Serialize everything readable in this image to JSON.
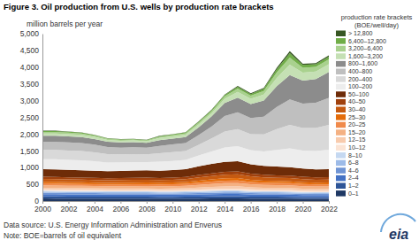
{
  "chart_data": {
    "type": "area",
    "stacked": true,
    "title": "Figure 3. Oil production from U.S. wells by production rate brackets",
    "y_label": "million barrels per year",
    "legend_title": [
      "production rate brackets",
      "(BOE/well/day)"
    ],
    "source": "Data source: U.S. Energy Information Administration and Enverus",
    "note": "Note: BOE=barrels of oil equivalent",
    "logo": "eia",
    "legend": "right",
    "grid": false,
    "x": [
      2000,
      2001,
      2002,
      2003,
      2004,
      2005,
      2006,
      2007,
      2008,
      2009,
      2010,
      2011,
      2012,
      2013,
      2014,
      2015,
      2016,
      2017,
      2018,
      2019,
      2020,
      2021,
      2022
    ],
    "xlim": [
      2000,
      2022
    ],
    "xticks": [
      2000,
      2002,
      2004,
      2006,
      2008,
      2010,
      2012,
      2014,
      2016,
      2018,
      2020,
      2022
    ],
    "ylim": [
      0,
      5000
    ],
    "yticks": [
      0,
      500,
      {
        "value": 1000,
        "label": "1,000"
      },
      {
        "value": 1500,
        "label": "1,500"
      },
      {
        "value": 2000,
        "label": "2,000"
      },
      {
        "value": 2500,
        "label": "2,500"
      },
      {
        "value": 3000,
        "label": "3,000"
      },
      {
        "value": 3500,
        "label": "3,500"
      },
      {
        "value": 4000,
        "label": "4,000"
      },
      {
        "value": 4500,
        "label": "4,500"
      },
      {
        "value": 5000,
        "label": "5,000"
      }
    ],
    "series": [
      {
        "name": "0–1",
        "color": "#1f3864",
        "values": [
          78,
          76,
          75,
          75,
          74,
          72,
          72,
          72,
          72,
          71,
          71,
          72,
          75,
          78,
          80,
          80,
          75,
          72,
          72,
          71,
          68,
          66,
          66
        ]
      },
      {
        "name": "1–2",
        "color": "#2e5597",
        "values": [
          62,
          61,
          60,
          60,
          59,
          58,
          58,
          58,
          58,
          57,
          57,
          58,
          60,
          62,
          64,
          64,
          60,
          58,
          58,
          57,
          54,
          53,
          53
        ]
      },
      {
        "name": "2–4",
        "color": "#4472c4",
        "values": [
          68,
          67,
          66,
          66,
          65,
          64,
          64,
          64,
          64,
          63,
          63,
          64,
          66,
          68,
          70,
          70,
          66,
          64,
          64,
          63,
          59,
          58,
          58
        ]
      },
      {
        "name": "4–6",
        "color": "#6f94d4",
        "values": [
          40,
          40,
          39,
          39,
          38,
          38,
          38,
          38,
          38,
          37,
          37,
          38,
          39,
          40,
          42,
          42,
          39,
          38,
          38,
          37,
          35,
          35,
          35
        ]
      },
      {
        "name": "6–8",
        "color": "#9dbbe8",
        "values": [
          34,
          34,
          33,
          33,
          32,
          32,
          32,
          32,
          32,
          31,
          31,
          32,
          33,
          34,
          35,
          35,
          33,
          32,
          32,
          31,
          30,
          29,
          29
        ]
      },
      {
        "name": "8–10",
        "color": "#c5d8f1",
        "values": [
          28,
          27,
          27,
          27,
          27,
          26,
          26,
          26,
          26,
          26,
          26,
          26,
          27,
          28,
          29,
          29,
          27,
          26,
          26,
          26,
          24,
          24,
          24
        ]
      },
      {
        "name": "10–12",
        "color": "#fbe4d5",
        "values": [
          38,
          38,
          38,
          37,
          37,
          36,
          37,
          37,
          38,
          37,
          38,
          40,
          44,
          48,
          51,
          52,
          48,
          46,
          44,
          44,
          42,
          41,
          41
        ]
      },
      {
        "name": "12–15",
        "color": "#f8cbad",
        "values": [
          51,
          51,
          50,
          50,
          49,
          48,
          49,
          50,
          50,
          50,
          51,
          53,
          59,
          64,
          68,
          70,
          64,
          61,
          59,
          58,
          56,
          54,
          55
        ]
      },
      {
        "name": "15–20",
        "color": "#f4b183",
        "values": [
          70,
          70,
          69,
          68,
          67,
          66,
          67,
          68,
          69,
          68,
          70,
          73,
          81,
          88,
          94,
          96,
          88,
          84,
          81,
          80,
          77,
          75,
          76
        ]
      },
      {
        "name": "20–25",
        "color": "#f08a4b",
        "values": [
          58,
          58,
          57,
          56,
          55,
          54,
          55,
          56,
          57,
          56,
          58,
          59,
          67,
          72,
          77,
          78,
          72,
          68,
          67,
          66,
          63,
          61,
          62
        ]
      },
      {
        "name": "25–30",
        "color": "#e46c0a",
        "values": [
          51,
          51,
          50,
          50,
          49,
          48,
          49,
          50,
          50,
          50,
          51,
          53,
          59,
          64,
          68,
          70,
          64,
          61,
          59,
          58,
          56,
          54,
          55
        ]
      },
      {
        "name": "30–40",
        "color": "#c55a11",
        "values": [
          83,
          83,
          82,
          81,
          79,
          78,
          79,
          81,
          82,
          81,
          83,
          86,
          96,
          104,
          110,
          113,
          104,
          99,
          96,
          95,
          91,
          88,
          90
        ]
      },
      {
        "name": "40–50",
        "color": "#a0410d",
        "values": [
          64,
          64,
          63,
          62,
          61,
          60,
          61,
          62,
          63,
          62,
          64,
          66,
          74,
          80,
          85,
          87,
          80,
          76,
          74,
          73,
          70,
          68,
          69
        ]
      },
      {
        "name": "50–100",
        "color": "#6e2c08",
        "values": [
          225,
          225,
          221,
          216,
          213,
          210,
          213,
          216,
          221,
          216,
          225,
          230,
          260,
          280,
          297,
          304,
          280,
          265,
          260,
          256,
          245,
          239,
          242
        ]
      },
      {
        "name": "100–200",
        "color": "#ededed",
        "values": [
          300,
          302,
          300,
          297,
          285,
          264,
          255,
          255,
          246,
          270,
          275,
          280,
          320,
          370,
          430,
          450,
          420,
          430,
          500,
          560,
          540,
          550,
          580
        ]
      },
      {
        "name": "200–400",
        "color": "#d9d9d9",
        "values": [
          280,
          281,
          280,
          277,
          266,
          246,
          238,
          238,
          230,
          255,
          262,
          268,
          320,
          390,
          480,
          510,
          480,
          510,
          620,
          700,
          670,
          690,
          740
        ]
      },
      {
        "name": "400–800",
        "color": "#bfbfbf",
        "values": [
          240,
          241,
          240,
          238,
          228,
          211,
          204,
          204,
          197,
          220,
          228,
          235,
          290,
          360,
          460,
          500,
          480,
          530,
          660,
          760,
          730,
          750,
          810
        ]
      },
      {
        "name": "800–1,600",
        "color": "#8c8c8c",
        "values": [
          180,
          181,
          180,
          178,
          171,
          159,
          153,
          153,
          147,
          170,
          175,
          177,
          230,
          300,
          390,
          440,
          420,
          480,
          620,
          730,
          690,
          710,
          770
        ]
      },
      {
        "name": "1,600–3,200",
        "color": "#c5e0b4",
        "values": [
          70,
          70,
          70,
          66,
          60,
          54,
          50,
          50,
          45,
          62,
          64,
          72,
          88,
          98,
          125,
          170,
          155,
          180,
          250,
          310,
          235,
          225,
          232
        ]
      },
      {
        "name": "3,200–6,400",
        "color": "#a9d18e",
        "values": [
          45,
          45,
          45,
          42,
          37,
          32,
          29,
          29,
          26,
          38,
          40,
          44,
          52,
          58,
          72,
          100,
          92,
          110,
          160,
          210,
          145,
          138,
          145
        ]
      },
      {
        "name": "6,400–12,800",
        "color": "#70ad47",
        "values": [
          25,
          25,
          25,
          23,
          20,
          17,
          15,
          15,
          14,
          21,
          22,
          24,
          28,
          31,
          38,
          55,
          50,
          62,
          95,
          130,
          85,
          80,
          83
        ]
      },
      {
        "name": "> 12,800",
        "color": "#375623",
        "values": [
          10,
          10,
          10,
          9,
          8,
          7,
          6,
          6,
          5,
          9,
          9,
          10,
          12,
          13,
          15,
          25,
          23,
          28,
          45,
          65,
          35,
          32,
          35
        ]
      }
    ]
  }
}
